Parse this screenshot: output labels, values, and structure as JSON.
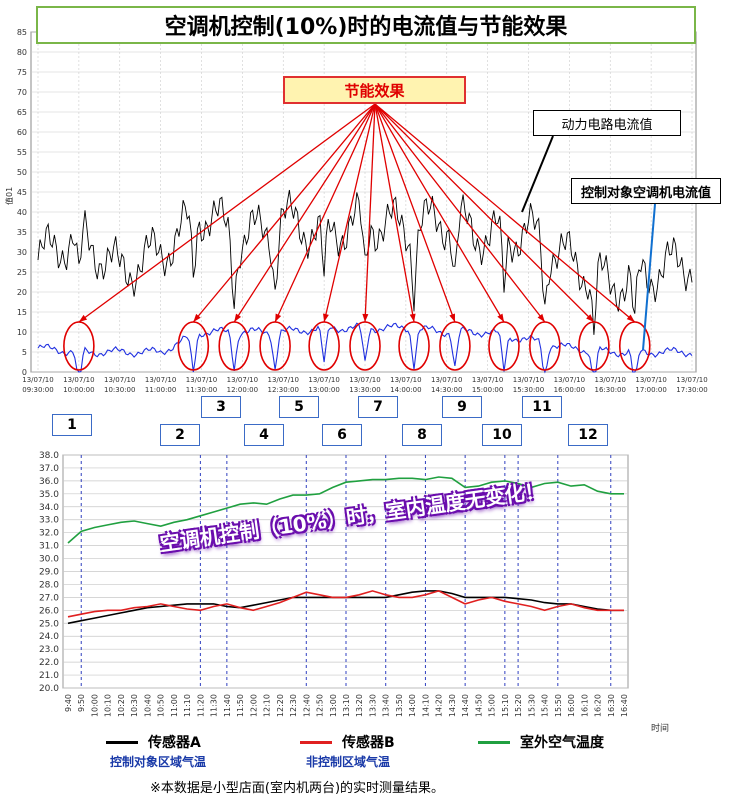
{
  "title": "空调机控制(10%)时的电流值与节能效果",
  "effect_label": "节能效果",
  "callout_power": "动力电路电流值",
  "callout_ac": "控制对象空调机电流值",
  "banner": "空调机控制（10%）时，室内温度无变化！",
  "footnote": "※本数据是小型店面(室内机两台)的实时测量结果。",
  "top_chart_ylabel": "值01",
  "xlabel2": "时间",
  "numbers": [
    "1",
    "2",
    "3",
    "4",
    "5",
    "6",
    "7",
    "8",
    "9",
    "10",
    "11",
    "12"
  ],
  "legend": [
    {
      "label": "传感器A",
      "sub": "控制对象区域气温",
      "color": "#000000"
    },
    {
      "label": "传感器B",
      "sub": "非控制区域气温",
      "color": "#e02020"
    },
    {
      "label": "室外空气温度",
      "sub": "",
      "color": "#20a040"
    }
  ],
  "chart_data": [
    {
      "type": "line",
      "ylabel": "值01",
      "ylim": [
        0,
        85
      ],
      "yticks": [
        0,
        5,
        10,
        15,
        20,
        25,
        30,
        35,
        40,
        45,
        50,
        55,
        60,
        65,
        70,
        75,
        80,
        85
      ],
      "x": [
        "13/07/10 09:30:00",
        "13/07/10 10:00:00",
        "13/07/10 10:30:00",
        "13/07/10 11:00:00",
        "13/07/10 11:30:00",
        "13/07/10 12:00:00",
        "13/07/10 12:30:00",
        "13/07/10 13:00:00",
        "13/07/10 13:30:00",
        "13/07/10 14:00:00",
        "13/07/10 14:30:00",
        "13/07/10 15:00:00",
        "13/07/10 15:30:00",
        "13/07/10 16:00:00",
        "13/07/10 16:30:00",
        "13/07/10 17:00:00",
        "13/07/10 17:30:00"
      ],
      "series": [
        {
          "name": "动力电路电流值",
          "color": "#000000",
          "values": [
            28,
            35,
            25,
            30,
            40,
            33,
            38,
            35,
            38,
            36,
            38,
            34,
            35,
            28,
            22,
            25,
            28
          ]
        },
        {
          "name": "控制对象空调机电流值",
          "color": "#2030e0",
          "values": [
            6,
            5,
            5,
            5,
            10,
            10,
            10,
            11,
            11,
            11,
            10,
            10,
            8,
            6,
            5,
            5,
            5
          ]
        }
      ],
      "dips": [
        10.0,
        11.4,
        11.9,
        12.4,
        13.0,
        13.5,
        14.1,
        14.6,
        15.2,
        15.7,
        16.3,
        16.8
      ]
    },
    {
      "type": "line",
      "xlabel": "时间",
      "ylim": [
        20.0,
        38.0
      ],
      "yticks": [
        "20.0",
        "21.0",
        "22.0",
        "23.0",
        "24.0",
        "25.0",
        "26.0",
        "27.0",
        "28.0",
        "29.0",
        "30.0",
        "31.0",
        "32.0",
        "33.0",
        "34.0",
        "35.0",
        "36.0",
        "37.0",
        "38.0"
      ],
      "categories": [
        "9:40",
        "9:50",
        "10:00",
        "10:10",
        "10:20",
        "10:30",
        "10:40",
        "10:50",
        "11:00",
        "11:10",
        "11:20",
        "11:30",
        "11:40",
        "11:50",
        "12:00",
        "12:10",
        "12:20",
        "12:30",
        "12:40",
        "12:50",
        "13:00",
        "13:10",
        "13:20",
        "13:30",
        "13:40",
        "13:50",
        "14:00",
        "14:10",
        "14:20",
        "14:30",
        "14:40",
        "14:50",
        "15:00",
        "15:10",
        "15:20",
        "15:30",
        "15:40",
        "15:50",
        "16:00",
        "16:10",
        "16:20",
        "16:30",
        "16:40"
      ],
      "series": [
        {
          "name": "传感器A",
          "color": "#000000",
          "values": [
            25.0,
            25.2,
            25.4,
            25.6,
            25.8,
            26.0,
            26.2,
            26.3,
            26.4,
            26.5,
            26.5,
            26.5,
            26.3,
            26.2,
            26.4,
            26.6,
            26.8,
            27.0,
            27.0,
            27.0,
            27.0,
            27.0,
            27.0,
            27.0,
            27.0,
            27.2,
            27.4,
            27.5,
            27.5,
            27.3,
            27.0,
            27.0,
            27.0,
            27.0,
            26.9,
            26.8,
            26.6,
            26.5,
            26.5,
            26.3,
            26.1,
            26.0,
            26.0
          ]
        },
        {
          "name": "传感器B",
          "color": "#e02020",
          "values": [
            25.5,
            25.7,
            25.9,
            26.0,
            26.0,
            26.2,
            26.3,
            26.5,
            26.3,
            26.1,
            26.0,
            26.3,
            26.5,
            26.2,
            26.0,
            26.3,
            26.6,
            27.0,
            27.4,
            27.2,
            27.0,
            27.0,
            27.2,
            27.5,
            27.2,
            27.0,
            27.0,
            27.2,
            27.5,
            27.0,
            26.5,
            26.8,
            27.0,
            26.7,
            26.5,
            26.3,
            26.0,
            26.3,
            26.5,
            26.2,
            26.0,
            26.0,
            26.0
          ]
        },
        {
          "name": "室外空气温度",
          "color": "#20a040",
          "values": [
            31.2,
            32.1,
            32.4,
            32.6,
            32.8,
            32.9,
            32.7,
            32.5,
            32.8,
            33.0,
            33.3,
            33.6,
            33.9,
            34.2,
            34.3,
            34.2,
            34.6,
            34.9,
            34.9,
            35.0,
            35.5,
            35.9,
            36.0,
            36.1,
            36.1,
            36.2,
            36.2,
            36.1,
            36.3,
            36.2,
            35.5,
            35.6,
            35.9,
            36.0,
            35.8,
            35.5,
            35.8,
            35.9,
            35.6,
            35.7,
            35.2,
            35.0,
            35.0
          ]
        }
      ],
      "marker_categories": [
        "9:50",
        "11:20",
        "11:40",
        "12:40",
        "13:10",
        "13:40",
        "14:10",
        "14:40",
        "15:10",
        "15:20",
        "15:50",
        "16:30"
      ]
    }
  ]
}
